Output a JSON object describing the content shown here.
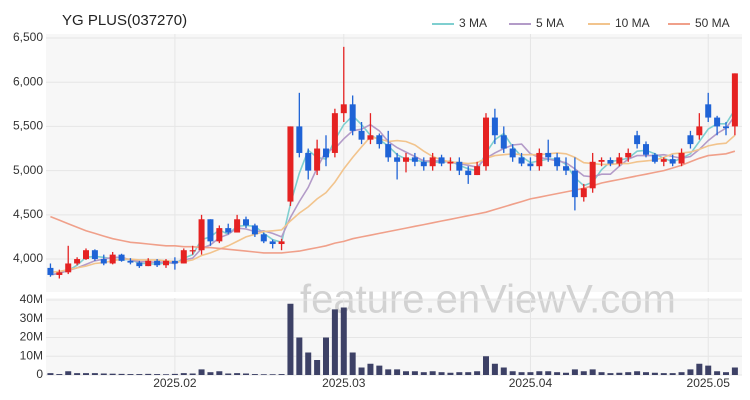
{
  "chart_data": {
    "type": "candlestick",
    "title": "YG PLUS(037270)",
    "watermark": "feature.enViewV.com",
    "up_color": "#e52222",
    "down_color": "#1f63d6",
    "volume_color": "#3d4166",
    "grid": true,
    "xlim": [
      -0.5,
      77.8
    ],
    "xticks": [
      {
        "value": 14,
        "label": "2025.02"
      },
      {
        "value": 33,
        "label": "2025.03"
      },
      {
        "value": 54,
        "label": "2025.04"
      },
      {
        "value": 74,
        "label": "2025.05"
      }
    ],
    "ylim": [
      3650,
      6500
    ],
    "yticks": [
      {
        "value": 4000,
        "label": "4,000"
      },
      {
        "value": 4500,
        "label": "4,500"
      },
      {
        "value": 5000,
        "label": "5,000"
      },
      {
        "value": 5500,
        "label": "5,500"
      },
      {
        "value": 6000,
        "label": "6,000"
      },
      {
        "value": 6500,
        "label": "6,500"
      }
    ],
    "volume_ylim": [
      0,
      40000000
    ],
    "volume_yticks": [
      0,
      {
        "value": 10000000,
        "label": "10M"
      },
      {
        "value": 20000000,
        "label": "20M"
      },
      {
        "value": 30000000,
        "label": "30M"
      },
      {
        "value": 40000000,
        "label": "40M"
      }
    ],
    "open": [
      3900,
      3820,
      3850,
      3950,
      4000,
      4100,
      4000,
      3950,
      4050,
      3980,
      3960,
      3920,
      3980,
      3930,
      3980,
      3950,
      4100,
      4100,
      4450,
      4200,
      4350,
      4300,
      4450,
      4380,
      4280,
      4200,
      4170,
      4650,
      5500,
      5200,
      5000,
      5250,
      5200,
      5650,
      5750,
      5450,
      5350,
      5400,
      5300,
      5150,
      5100,
      5150,
      5100,
      5050,
      5150,
      5080,
      5100,
      5000,
      4950,
      5050,
      5600,
      5400,
      5250,
      5150,
      5080,
      5050,
      5200,
      5150,
      5050,
      5000,
      4700,
      4800,
      5100,
      5120,
      5080,
      5150,
      5400,
      5300,
      5180,
      5100,
      5130,
      5080,
      5400,
      5400,
      5750,
      5600,
      5500,
      5500
    ],
    "high": [
      3950,
      3880,
      4150,
      4020,
      4120,
      4110,
      4050,
      4080,
      4060,
      4010,
      3980,
      4010,
      4000,
      4000,
      4020,
      4120,
      4150,
      4500,
      4450,
      4380,
      4400,
      4500,
      4480,
      4400,
      4300,
      4220,
      4230,
      5500,
      5880,
      5250,
      5350,
      5400,
      5700,
      6400,
      5850,
      5550,
      5650,
      5420,
      5450,
      5200,
      5200,
      5200,
      5150,
      5200,
      5180,
      5150,
      5150,
      5050,
      5100,
      5650,
      5700,
      5500,
      5300,
      5200,
      5150,
      5250,
      5350,
      5200,
      5150,
      5150,
      4850,
      5200,
      5150,
      5150,
      5200,
      5250,
      5450,
      5330,
      5200,
      5150,
      5180,
      5250,
      5450,
      5650,
      5880,
      5620,
      5550,
      6100
    ],
    "low": [
      3800,
      3780,
      3830,
      3930,
      3990,
      3980,
      3930,
      3940,
      3970,
      3940,
      3900,
      3920,
      3910,
      3900,
      3880,
      3950,
      4050,
      4050,
      4150,
      4180,
      4280,
      4300,
      4350,
      4250,
      4180,
      4120,
      4100,
      4600,
      5150,
      4900,
      4950,
      5050,
      5150,
      5550,
      5400,
      5300,
      5300,
      5250,
      5100,
      4900,
      4980,
      5050,
      5000,
      5000,
      5050,
      5000,
      4950,
      4850,
      4950,
      5000,
      5300,
      5200,
      5100,
      5050,
      5000,
      5000,
      5100,
      5000,
      4950,
      4550,
      4650,
      4750,
      5050,
      5050,
      5050,
      5100,
      5250,
      5150,
      5080,
      5050,
      5050,
      5050,
      5250,
      5350,
      5550,
      5400,
      5400,
      5400
    ],
    "close": [
      3820,
      3850,
      3950,
      4000,
      4100,
      4000,
      3950,
      4050,
      3980,
      3960,
      3920,
      3980,
      3930,
      3980,
      3950,
      4100,
      4100,
      4450,
      4200,
      4350,
      4300,
      4450,
      4380,
      4280,
      4200,
      4170,
      4200,
      5500,
      5200,
      5000,
      5250,
      5150,
      5650,
      5750,
      5450,
      5350,
      5400,
      5300,
      5150,
      5100,
      5150,
      5100,
      5050,
      5150,
      5080,
      5100,
      5000,
      4950,
      5050,
      5600,
      5400,
      5250,
      5150,
      5080,
      5050,
      5200,
      5150,
      5050,
      5000,
      4700,
      4800,
      5100,
      5120,
      5080,
      5150,
      5200,
      5300,
      5180,
      5100,
      5130,
      5080,
      5200,
      5300,
      5500,
      5600,
      5500,
      5480,
      6100
    ],
    "volume": [
      1000000,
      500000,
      2000000,
      1000000,
      1000000,
      1000000,
      800000,
      700000,
      600000,
      500000,
      500000,
      600000,
      500000,
      400000,
      600000,
      1000000,
      800000,
      3000000,
      1500000,
      2000000,
      800000,
      1000000,
      800000,
      500000,
      400000,
      400000,
      500000,
      38000000,
      20000000,
      12000000,
      8000000,
      20000000,
      35000000,
      36000000,
      12000000,
      4000000,
      6000000,
      5000000,
      3000000,
      3000000,
      2000000,
      2000000,
      1500000,
      2000000,
      1500000,
      1200000,
      1500000,
      1500000,
      2000000,
      10000000,
      6000000,
      4000000,
      2000000,
      1500000,
      1500000,
      2000000,
      2000000,
      1500000,
      1200000,
      3000000,
      2000000,
      3000000,
      1500000,
      1000000,
      1200000,
      1500000,
      2000000,
      1500000,
      1200000,
      1000000,
      1000000,
      1500000,
      3000000,
      6000000,
      5000000,
      2000000,
      1500000,
      4000000
    ],
    "series": [
      {
        "name": "3 MA",
        "color": "#7fcfd0",
        "values": [
          3820,
          3840,
          3870,
          3930,
          4020,
          4030,
          4020,
          4000,
          3990,
          4000,
          3950,
          3950,
          3940,
          3960,
          3950,
          4010,
          4050,
          4220,
          4250,
          4330,
          4280,
          4370,
          4380,
          4370,
          4290,
          4220,
          4190,
          4620,
          4970,
          5230,
          5150,
          5130,
          5350,
          5520,
          5620,
          5520,
          5400,
          5350,
          5280,
          5180,
          5130,
          5120,
          5100,
          5100,
          5090,
          5110,
          5060,
          5020,
          5000,
          5200,
          5350,
          5420,
          5270,
          5160,
          5090,
          5110,
          5130,
          5130,
          5070,
          4920,
          4830,
          4870,
          5010,
          5100,
          5120,
          5140,
          5220,
          5230,
          5190,
          5140,
          5100,
          5140,
          5190,
          5330,
          5470,
          5530,
          5530,
          5690
        ]
      },
      {
        "name": "5 MA",
        "color": "#b39bc8",
        "values": [
          3820,
          3840,
          3870,
          3900,
          3940,
          3980,
          4000,
          4020,
          4020,
          3990,
          3970,
          3970,
          3960,
          3970,
          3950,
          3990,
          4010,
          4120,
          4160,
          4240,
          4280,
          4350,
          4340,
          4310,
          4320,
          4290,
          4250,
          4470,
          4650,
          4810,
          5030,
          5220,
          5250,
          5360,
          5450,
          5470,
          5520,
          5450,
          5330,
          5260,
          5210,
          5160,
          5110,
          5110,
          5110,
          5100,
          5080,
          5060,
          5040,
          5140,
          5200,
          5250,
          5290,
          5300,
          5190,
          5150,
          5130,
          5110,
          5090,
          5020,
          4940,
          4930,
          4960,
          4960,
          5050,
          5130,
          5170,
          5170,
          5170,
          5180,
          5160,
          5140,
          5160,
          5240,
          5340,
          5420,
          5480,
          5620
        ]
      },
      {
        "name": "10 MA",
        "color": "#f2c48d",
        "values": [
          3850,
          3860,
          3880,
          3900,
          3920,
          3950,
          3960,
          3980,
          4000,
          4000,
          3990,
          3990,
          3990,
          3980,
          3970,
          3970,
          3990,
          4040,
          4070,
          4110,
          4150,
          4200,
          4250,
          4280,
          4310,
          4320,
          4330,
          4430,
          4520,
          4590,
          4680,
          4750,
          4870,
          5020,
          5150,
          5270,
          5380,
          5360,
          5330,
          5340,
          5330,
          5290,
          5220,
          5160,
          5120,
          5100,
          5090,
          5080,
          5090,
          5140,
          5170,
          5180,
          5190,
          5180,
          5180,
          5180,
          5190,
          5200,
          5190,
          5150,
          5090,
          5080,
          5070,
          5070,
          5080,
          5080,
          5100,
          5110,
          5120,
          5150,
          5190,
          5200,
          5210,
          5240,
          5280,
          5300,
          5310,
          5400
        ]
      },
      {
        "name": "50 MA",
        "color": "#f0a08a",
        "values": [
          4480,
          4440,
          4400,
          4360,
          4320,
          4290,
          4260,
          4230,
          4210,
          4190,
          4180,
          4170,
          4160,
          4150,
          4150,
          4140,
          4140,
          4130,
          4130,
          4120,
          4110,
          4100,
          4090,
          4080,
          4070,
          4070,
          4070,
          4080,
          4090,
          4110,
          4130,
          4150,
          4180,
          4200,
          4230,
          4250,
          4270,
          4290,
          4310,
          4330,
          4350,
          4370,
          4390,
          4410,
          4430,
          4450,
          4470,
          4490,
          4510,
          4530,
          4560,
          4590,
          4620,
          4650,
          4680,
          4700,
          4720,
          4740,
          4760,
          4780,
          4800,
          4830,
          4860,
          4880,
          4900,
          4920,
          4940,
          4960,
          4980,
          5000,
          5030,
          5060,
          5100,
          5140,
          5170,
          5180,
          5190,
          5220
        ]
      }
    ]
  }
}
